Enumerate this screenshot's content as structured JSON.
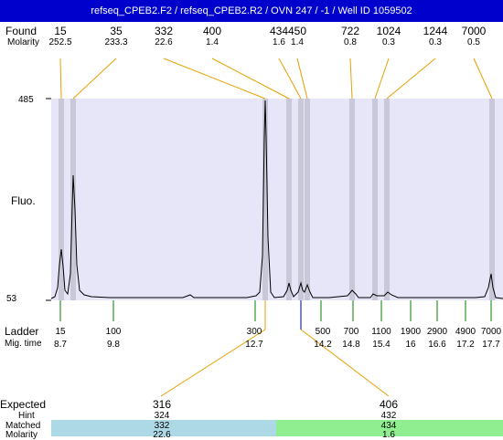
{
  "title": "refseq_CPEB2.F2 / refseq_CPEB2.R2 / OVN 247 / -1 / Well ID 1059502",
  "labels": {
    "found": "Found",
    "molarity": "Molarity",
    "fluo": "Fluo.",
    "ladder": "Ladder",
    "mig_time": "Mig. time",
    "expected": "Expected",
    "hint": "Hint",
    "matched": "Matched",
    "molarity_bottom": "Molarity"
  },
  "y_axis": {
    "top": "485",
    "bottom": "53"
  },
  "found_peaks": [
    {
      "size": "15",
      "molarity": "252.5"
    },
    {
      "size": "35",
      "molarity": "233.3"
    },
    {
      "size": "332",
      "molarity": "22.6"
    },
    {
      "size": "400",
      "molarity": "1.4"
    },
    {
      "size": "434",
      "molarity": "1.6"
    },
    {
      "size": "450",
      "molarity": "1.4"
    },
    {
      "size": "722",
      "molarity": "0.8"
    },
    {
      "size": "1024",
      "molarity": "0.3"
    },
    {
      "size": "1244",
      "molarity": "0.3"
    },
    {
      "size": "7000",
      "molarity": "0.5"
    }
  ],
  "ladder": [
    {
      "size": "15",
      "time": "8.7"
    },
    {
      "size": "100",
      "time": "9.8"
    },
    {
      "size": "300",
      "time": "12.7"
    },
    {
      "size": "500",
      "time": "14.2"
    },
    {
      "size": "700",
      "time": "14.8"
    },
    {
      "size": "1100",
      "time": "15.4"
    },
    {
      "size": "1900",
      "time": "16"
    },
    {
      "size": "2900",
      "time": "16.6"
    },
    {
      "size": "4900",
      "time": "17.2"
    },
    {
      "size": "7000",
      "time": "17.7"
    }
  ],
  "expected": [
    {
      "size": "316",
      "hint": "324",
      "matched": "332",
      "molarity": "22.6"
    },
    {
      "size": "406",
      "hint": "432",
      "matched": "434",
      "molarity": "1.6"
    }
  ],
  "colors": {
    "title_bg": "#0000cc",
    "plot_bg": "#e6e6f8",
    "peak_band": "#c8c8d8",
    "found_connector": "#e8a000",
    "ladder_tick": "#008000",
    "expected_marker": "#000080",
    "matched_cell_1": "#add8e6",
    "matched_cell_2": "#90ee90"
  }
}
